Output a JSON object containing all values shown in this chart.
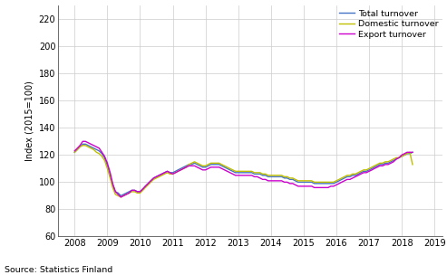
{
  "title": "",
  "ylabel": "Index (2015=100)",
  "source": "Source: Statistics Finland",
  "ylim": [
    60,
    230
  ],
  "yticks": [
    60,
    80,
    100,
    120,
    140,
    160,
    180,
    200,
    220
  ],
  "colors": {
    "total": "#4472C4",
    "domestic": "#BFBF00",
    "export": "#CC00CC"
  },
  "legend_labels": [
    "Total turnover",
    "Domestic turnover",
    "Export turnover"
  ],
  "background": "#FFFFFF",
  "grid_color": "#CCCCCC",
  "total_turnover": [
    122,
    124,
    126,
    128,
    128,
    127,
    126,
    125,
    124,
    123,
    121,
    118,
    112,
    105,
    98,
    93,
    92,
    90,
    91,
    92,
    93,
    94,
    94,
    93,
    93,
    95,
    97,
    99,
    101,
    103,
    104,
    105,
    106,
    107,
    108,
    107,
    107,
    108,
    109,
    110,
    111,
    112,
    113,
    113,
    114,
    113,
    112,
    111,
    111,
    112,
    113,
    113,
    113,
    113,
    112,
    111,
    110,
    109,
    108,
    107,
    107,
    107,
    107,
    107,
    107,
    107,
    106,
    106,
    106,
    105,
    105,
    104,
    104,
    104,
    104,
    104,
    104,
    103,
    103,
    102,
    102,
    101,
    100,
    100,
    100,
    100,
    100,
    100,
    99,
    99,
    99,
    99,
    99,
    99,
    99,
    99,
    100,
    101,
    102,
    103,
    104,
    104,
    105,
    105,
    106,
    107,
    108,
    108,
    109,
    110,
    111,
    112,
    113,
    113,
    114,
    114,
    115,
    116,
    117,
    118,
    119,
    120,
    121,
    121,
    122
  ],
  "domestic_turnover": [
    122,
    124,
    126,
    127,
    127,
    126,
    125,
    124,
    122,
    121,
    119,
    116,
    110,
    103,
    96,
    91,
    90,
    89,
    90,
    91,
    92,
    93,
    93,
    92,
    92,
    94,
    96,
    98,
    100,
    102,
    103,
    104,
    105,
    106,
    107,
    106,
    106,
    107,
    108,
    109,
    110,
    111,
    113,
    114,
    115,
    114,
    113,
    112,
    112,
    113,
    114,
    114,
    114,
    114,
    113,
    112,
    111,
    110,
    109,
    108,
    108,
    108,
    108,
    108,
    108,
    108,
    107,
    107,
    107,
    106,
    106,
    105,
    105,
    105,
    105,
    105,
    105,
    104,
    104,
    103,
    103,
    102,
    101,
    101,
    101,
    101,
    101,
    101,
    100,
    100,
    100,
    100,
    100,
    100,
    100,
    100,
    101,
    102,
    103,
    104,
    105,
    105,
    106,
    106,
    107,
    108,
    109,
    109,
    110,
    111,
    112,
    113,
    114,
    114,
    115,
    115,
    116,
    117,
    118,
    118,
    119,
    120,
    121,
    122,
    113
  ],
  "export_turnover": [
    123,
    125,
    127,
    130,
    130,
    129,
    128,
    127,
    126,
    125,
    122,
    119,
    114,
    107,
    99,
    93,
    91,
    89,
    90,
    91,
    92,
    94,
    94,
    93,
    93,
    95,
    97,
    99,
    101,
    103,
    104,
    105,
    106,
    107,
    108,
    107,
    106,
    107,
    108,
    109,
    110,
    111,
    112,
    112,
    112,
    111,
    110,
    109,
    109,
    110,
    111,
    111,
    111,
    111,
    110,
    109,
    108,
    107,
    106,
    105,
    105,
    105,
    105,
    105,
    105,
    105,
    104,
    104,
    103,
    102,
    102,
    101,
    101,
    101,
    101,
    101,
    101,
    100,
    100,
    99,
    99,
    98,
    97,
    97,
    97,
    97,
    97,
    97,
    96,
    96,
    96,
    96,
    96,
    96,
    97,
    97,
    98,
    99,
    100,
    101,
    102,
    102,
    103,
    104,
    105,
    106,
    107,
    107,
    108,
    109,
    110,
    111,
    112,
    112,
    113,
    113,
    114,
    115,
    117,
    118,
    120,
    121,
    122,
    122,
    122
  ],
  "n_months": 125
}
